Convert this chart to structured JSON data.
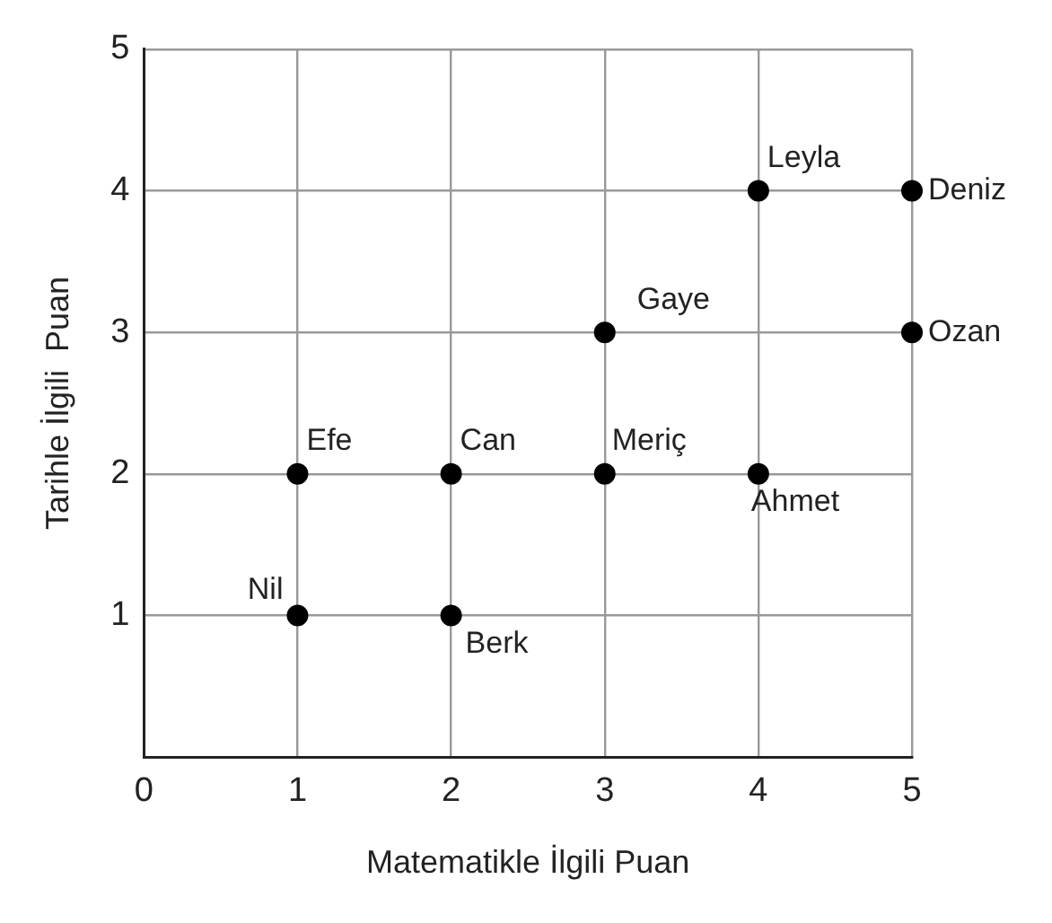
{
  "chart_data": {
    "type": "scatter",
    "xlabel": "Matematikle İlgili Puan",
    "ylabel": "Tarihle İlgili  Puan",
    "x": [
      1,
      2,
      1,
      2,
      3,
      4,
      3,
      5,
      4,
      5
    ],
    "series": [
      {
        "color": "#000000",
        "values": [
          1,
          1,
          2,
          2,
          2,
          2,
          3,
          3,
          4,
          4
        ]
      }
    ],
    "xlim": [
      0,
      5
    ],
    "ylim": [
      0,
      5
    ],
    "xticks": [
      0,
      1,
      2,
      3,
      4,
      5
    ],
    "yticks": [
      {
        "value": 0,
        "label": null
      },
      1,
      2,
      3,
      4,
      5
    ],
    "grid": true,
    "legend": false,
    "marker": "circle",
    "annotations": [
      {
        "text": "Nil",
        "x": 1,
        "y": 1
      },
      {
        "text": "Berk",
        "x": 2,
        "y": 1
      },
      {
        "text": "Efe",
        "x": 1,
        "y": 2
      },
      {
        "text": "Can",
        "x": 2,
        "y": 2
      },
      {
        "text": "Meriç",
        "x": 3,
        "y": 2
      },
      {
        "text": "Ahmet",
        "x": 4,
        "y": 2
      },
      {
        "text": "Gaye",
        "x": 3,
        "y": 3
      },
      {
        "text": "Ozan",
        "x": 5,
        "y": 3
      },
      {
        "text": "Leyla",
        "x": 4,
        "y": 4
      },
      {
        "text": "Deniz",
        "x": 5,
        "y": 4
      }
    ]
  }
}
